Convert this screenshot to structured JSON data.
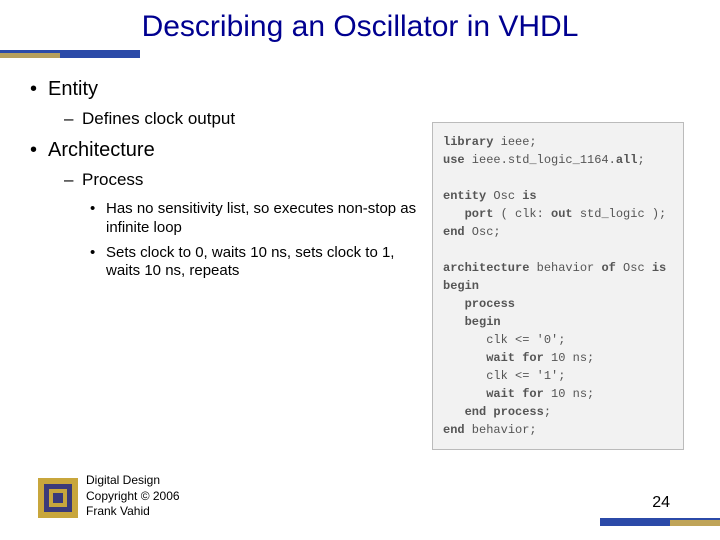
{
  "title": "Describing an Oscillator in VHDL",
  "bullets": {
    "entity": "Entity",
    "entity_sub": "Defines clock output",
    "arch": "Architecture",
    "arch_sub": "Process",
    "p1": "Has no sensitivity list, so executes non-stop as infinite loop",
    "p2": "Sets clock to 0, waits 10 ns, sets clock to 1, waits 10 ns, repeats"
  },
  "code": {
    "l1a": "library",
    "l1b": " ieee;",
    "l2a": "use",
    "l2b": " ieee.std_logic_1164.",
    "l2c": "all",
    "l2d": ";",
    "l3a": "entity",
    "l3b": " Osc ",
    "l3c": "is",
    "l4a": "   port",
    "l4b": " ( clk: ",
    "l4c": "out",
    "l4d": " std_logic );",
    "l5a": "end",
    "l5b": " Osc;",
    "l6a": "architecture",
    "l6b": " behavior ",
    "l6c": "of",
    "l6d": " Osc ",
    "l6e": "is",
    "l7a": "begin",
    "l8a": "   process",
    "l9a": "   begin",
    "l10": "      clk <= '0';",
    "l11a": "      wait",
    "l11b": " ",
    "l11c": "for",
    "l11d": " 10 ns;",
    "l12": "      clk <= '1';",
    "l13a": "      wait",
    "l13b": " ",
    "l13c": "for",
    "l13d": " 10 ns;",
    "l14a": "   end",
    "l14b": " ",
    "l14c": "process",
    "l14d": ";",
    "l15a": "end",
    "l15b": " behavior;"
  },
  "footer": {
    "line1": "Digital Design",
    "line2": "Copyright © 2006",
    "line3": "Frank Vahid"
  },
  "page": "24",
  "colors": {
    "title": "#000090",
    "accent_blue": "#2b4aa8",
    "accent_gold": "#d9b44a",
    "code_bg": "#f2f2f2",
    "code_text": "#555555"
  }
}
